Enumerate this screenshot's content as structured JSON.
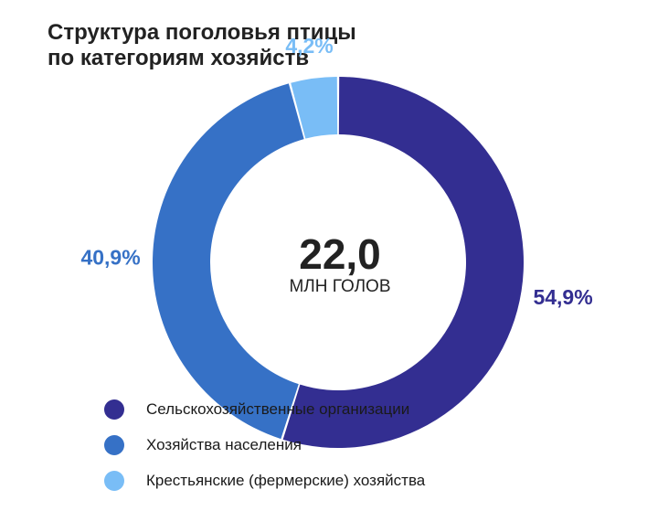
{
  "title_line1": "Структура поголовья птицы",
  "title_line2": "по категориям хозяйств",
  "center": {
    "value": "22,0",
    "unit": "МЛН ГОЛОВ"
  },
  "chart_data": {
    "type": "pie",
    "variant": "donut",
    "title": "Структура поголовья птицы по категориям хозяйств",
    "total": 22.0,
    "total_unit": "МЛН ГОЛОВ",
    "legend_placement": "bottom",
    "series": [
      {
        "name": "Сельскохозяйственные организации",
        "value": 54.9,
        "label": "54,9%",
        "color": "#332e91"
      },
      {
        "name": "Хозяйства населения",
        "value": 40.9,
        "label": "40,9%",
        "color": "#3671c6"
      },
      {
        "name": "Крестьянские (фермерские) хозяйства",
        "value": 4.2,
        "label": "4,2%",
        "color": "#79bdf6"
      }
    ]
  }
}
